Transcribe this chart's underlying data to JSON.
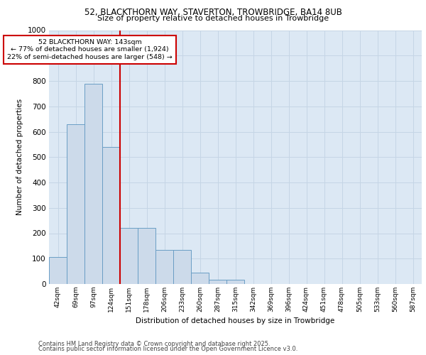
{
  "title_line1": "52, BLACKTHORN WAY, STAVERTON, TROWBRIDGE, BA14 8UB",
  "title_line2": "Size of property relative to detached houses in Trowbridge",
  "xlabel": "Distribution of detached houses by size in Trowbridge",
  "ylabel": "Number of detached properties",
  "footer_line1": "Contains HM Land Registry data © Crown copyright and database right 2025.",
  "footer_line2": "Contains public sector information licensed under the Open Government Licence v3.0.",
  "annotation_line1": "52 BLACKTHORN WAY: 143sqm",
  "annotation_line2": "← 77% of detached houses are smaller (1,924)",
  "annotation_line3": "22% of semi-detached houses are larger (548) →",
  "categories": [
    "42sqm",
    "69sqm",
    "97sqm",
    "124sqm",
    "151sqm",
    "178sqm",
    "206sqm",
    "233sqm",
    "260sqm",
    "287sqm",
    "315sqm",
    "342sqm",
    "369sqm",
    "396sqm",
    "424sqm",
    "451sqm",
    "478sqm",
    "505sqm",
    "533sqm",
    "560sqm",
    "587sqm"
  ],
  "values": [
    107,
    630,
    790,
    540,
    220,
    220,
    135,
    135,
    45,
    17,
    17,
    0,
    0,
    0,
    0,
    0,
    0,
    0,
    0,
    0,
    0
  ],
  "bar_color": "#ccdaea",
  "bar_edge_color": "#6a9ec5",
  "vline_color": "#cc0000",
  "vline_x": 3.5,
  "ylim": [
    0,
    1000
  ],
  "yticks": [
    0,
    100,
    200,
    300,
    400,
    500,
    600,
    700,
    800,
    900,
    1000
  ],
  "grid_color": "#c5d5e5",
  "annotation_box_color": "#cc0000",
  "bg_color": "#dce8f4"
}
